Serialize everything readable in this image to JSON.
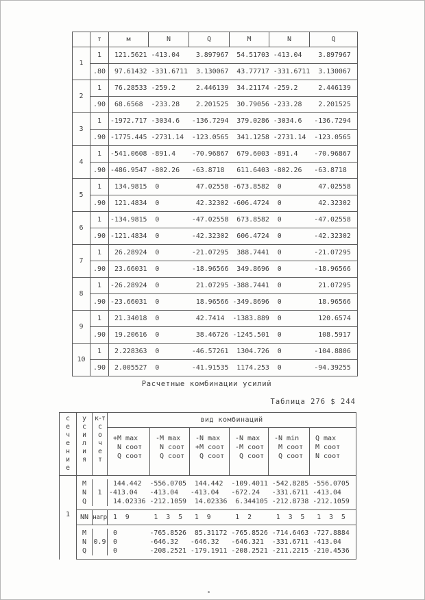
{
  "table1": {
    "headers": {
      "col0": "",
      "col1": "т",
      "c_m": "м",
      "c_n1": "N",
      "c_q1": "Q",
      "c_m2": "M",
      "c_n2": "N",
      "c_q2": "Q"
    },
    "groups": [
      {
        "num": "1",
        "rows": [
          {
            "t": "1",
            "values": [
              "121.5621",
              "-413.04",
              "3.897967",
              "54.51703",
              "-413.04",
              "3.897967"
            ]
          },
          {
            "t": ".80",
            "values": [
              "97.61432",
              "-331.6711",
              "3.130067",
              "43.77717",
              "-331.6711",
              "3.130067"
            ]
          }
        ]
      },
      {
        "num": "2",
        "rows": [
          {
            "t": "1",
            "values": [
              "76.28533",
              "-259.2",
              "2.446139",
              "34.21174",
              "-259.2",
              "2.446139"
            ]
          },
          {
            "t": ".90",
            "values": [
              "68.6568",
              "-233.28",
              "2.201525",
              "30.79056",
              "-233.28",
              "2.201525"
            ]
          }
        ]
      },
      {
        "num": "3",
        "rows": [
          {
            "t": "1",
            "values": [
              "-1972.717",
              "-3034.6",
              "-136.7294",
              "379.0286",
              "-3034.6",
              "-136.7294"
            ]
          },
          {
            "t": ".90",
            "values": [
              "-1775.445",
              "-2731.14",
              "-123.0565",
              "341.1258",
              "-2731.14",
              "-123.0565"
            ]
          }
        ]
      },
      {
        "num": "4",
        "rows": [
          {
            "t": "1",
            "values": [
              "-541.0608",
              "-891.4",
              "-70.96867",
              "679.6003",
              "-891.4",
              "-70.96867"
            ]
          },
          {
            "t": ".90",
            "values": [
              "-486.9547",
              "-802.26",
              "-63.8718",
              "611.6403",
              "-802.26",
              "-63.8718"
            ]
          }
        ]
      },
      {
        "num": "5",
        "rows": [
          {
            "t": "1",
            "values": [
              "134.9815",
              "0",
              "47.02558",
              "-673.8582",
              "0",
              "47.02558"
            ]
          },
          {
            "t": ".90",
            "values": [
              "121.4834",
              "0",
              "42.32302",
              "-606.4724",
              "0",
              "42.32302"
            ]
          }
        ]
      },
      {
        "num": "6",
        "rows": [
          {
            "t": "1",
            "values": [
              "-134.9815",
              "0",
              "-47.02558",
              "673.8582",
              "0",
              "-47.02558"
            ]
          },
          {
            "t": ".90",
            "values": [
              "-121.4834",
              "0",
              "-42.32302",
              "606.4724",
              "0",
              "-42.32302"
            ]
          }
        ]
      },
      {
        "num": "7",
        "rows": [
          {
            "t": "1",
            "values": [
              "26.28924",
              "0",
              "-21.07295",
              "388.7441",
              "0",
              "-21.07295"
            ]
          },
          {
            "t": ".90",
            "values": [
              "23.66031",
              "0",
              "-18.96566",
              "349.8696",
              "0",
              "-18.96566"
            ]
          }
        ]
      },
      {
        "num": "8",
        "rows": [
          {
            "t": "1",
            "values": [
              "-26.28924",
              "0",
              "21.07295",
              "-388.7441",
              "0",
              "21.07295"
            ]
          },
          {
            "t": ".90",
            "values": [
              "-23.66031",
              "0",
              "18.96566",
              "-349.8696",
              "0",
              "18.96566"
            ]
          }
        ]
      },
      {
        "num": "9",
        "rows": [
          {
            "t": "1",
            "values": [
              "21.34018",
              "0",
              "42.7414",
              "-1383.889",
              "0",
              "120.6574"
            ]
          },
          {
            "t": ".90",
            "values": [
              "19.20616",
              "0",
              "38.46726",
              "-1245.501",
              "0",
              "108.5917"
            ]
          }
        ]
      },
      {
        "num": "10",
        "rows": [
          {
            "t": "1",
            "values": [
              "2.228363",
              "0",
              "-46.57261",
              "1304.726",
              "0",
              "-104.8806"
            ]
          },
          {
            "t": ".90",
            "values": [
              "2.005527",
              "0",
              "-41.91535",
              "1174.253",
              "0",
              "-94.39255"
            ]
          }
        ]
      }
    ]
  },
  "caption": "Расчетные комбинации усилий",
  "table_label": "Таблица 276 $ 244",
  "table2": {
    "left_headers": {
      "section": "с\nе\nч\nе\nн\nи\nе",
      "force": "у\nс\nи\nл\nи\nя",
      "coef": "к-т\nс\nо\nч\nе\nт"
    },
    "combo_title": "вид комбинаций",
    "combo_headers": [
      "+M max\n N соот\n Q соот",
      "-M max\n N соот\n Q соот",
      "-N max\n+M соот\n Q соот",
      "-N max\n-M соот\n Q соот",
      "-N min\n M соот\n Q соот",
      "Q max\nM соот\nN соот"
    ],
    "section_no": "1",
    "blocks": [
      {
        "coef": "1",
        "row_labels": "M\nN\nQ",
        "rows": {
          "M": [
            "144.442",
            "-556.0705",
            "144.442",
            "-109.4011",
            "-542.8285",
            "-556.0705"
          ],
          "N": [
            "-413.04",
            "-413.04",
            "-413.04",
            "-672.24",
            "-331.6711",
            "-413.04"
          ],
          "Q": [
            "14.02336",
            "-212.1059",
            "14.02336",
            "6.344105",
            "-212.8738",
            "-212.1059"
          ]
        }
      },
      {
        "coef": "0.9",
        "row_labels": "M\nN\nQ",
        "rows": {
          "M": [
            "0",
            "-765.8526",
            "85.31172",
            "-765.8526",
            "-714.6463",
            "-727.8884"
          ],
          "N": [
            "0",
            "-646.32",
            "-646.32",
            "-646.321",
            "-331.6711",
            "-413.04"
          ],
          "Q": [
            "0",
            "-208.2521",
            "-179.1911",
            "-208.2521",
            "-211.2215",
            "-210.4536"
          ]
        }
      }
    ],
    "nn_row": {
      "label1": "NN",
      "label2": "нагр",
      "values": [
        "1  9",
        "1  3  5",
        "1  9",
        "1  2",
        "1  3  5",
        "1  3  5"
      ]
    }
  },
  "page_mark": "."
}
